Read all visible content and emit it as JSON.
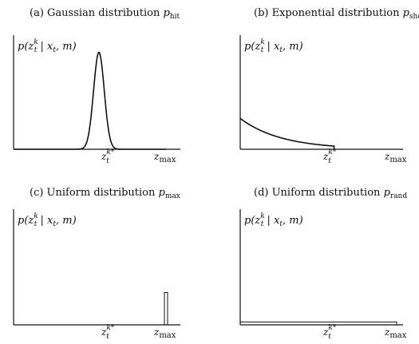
{
  "chart_data": [
    {
      "id": "a",
      "type": "line",
      "title": "(a) Gaussian distribution p_hit",
      "title_main": "(a) Gaussian distribution ",
      "title_var": "p",
      "title_sub": "hit",
      "ylabel": "p(z_t^k | x_t, m)",
      "xticks": [
        "z_t^{k*}",
        "z_max"
      ],
      "distribution": "gaussian",
      "x_range": [
        0,
        1
      ],
      "params": {
        "mu": 0.56,
        "sigma": 0.035,
        "peak": 0.85
      }
    },
    {
      "id": "b",
      "type": "line",
      "title": "(b) Exponential distribution p_short",
      "title_main": "(b) Exponential distribution ",
      "title_var": "p",
      "title_sub": "short",
      "ylabel": "p(z_t^k | x_t, m)",
      "xticks": [
        "z_t^{k*}",
        "z_max"
      ],
      "distribution": "exponential",
      "x_range": [
        0,
        1
      ],
      "params": {
        "start": 0.27,
        "rate": 3.8,
        "cutoff": 0.6
      }
    },
    {
      "id": "c",
      "type": "bar",
      "title": "(c) Uniform distribution p_max",
      "title_main": "(c) Uniform distribution ",
      "title_var": "p",
      "title_sub": "max",
      "ylabel": "p(z_t^k | x_t, m)",
      "xticks": [
        "z_t^{k*}",
        "z_max"
      ],
      "distribution": "point-mass",
      "x_range": [
        0,
        1
      ],
      "params": {
        "at": 1.0,
        "height": 0.28
      }
    },
    {
      "id": "d",
      "type": "line",
      "title": "(d) Uniform distribution p_rand",
      "title_main": "(d) Uniform distribution ",
      "title_var": "p",
      "title_sub": "rand",
      "ylabel": "p(z_t^k | x_t, m)",
      "xticks": [
        "z_t^{k*}",
        "z_max"
      ],
      "distribution": "uniform",
      "x_range": [
        0,
        1
      ],
      "params": {
        "value": 0.025
      }
    }
  ],
  "tick_text": {
    "zk_base": "z",
    "zk_sub": "t",
    "zk_sup": "k*",
    "zmax_base": "z",
    "zmax_sub": "max"
  },
  "ylabel_text": {
    "p": "p(",
    "z": "z",
    "z_sub": "t",
    "z_sup": "k",
    "rest1": " | ",
    "x": "x",
    "x_sub": "t",
    "rest2": ", m)"
  }
}
